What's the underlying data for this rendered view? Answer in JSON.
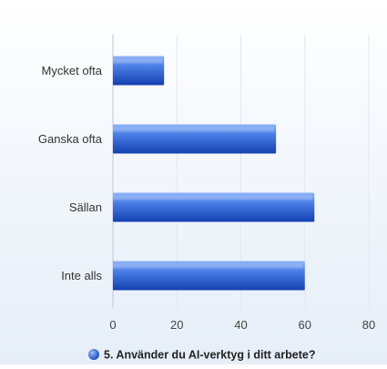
{
  "chart_data": {
    "type": "bar",
    "orientation": "horizontal",
    "categories": [
      "Mycket ofta",
      "Ganska ofta",
      "Sällan",
      "Inte alls"
    ],
    "series": [
      {
        "name": "5. Använder du AI-verktyg i ditt arbete?",
        "values": [
          16,
          51,
          63,
          60
        ]
      }
    ],
    "xlim": [
      0,
      80
    ],
    "xticks": [
      0,
      20,
      40,
      60,
      80
    ],
    "grid": true,
    "legend": "bottom-center",
    "colors": {
      "bar_dark": "#1d4fc4",
      "bar_light": "#6f9cf2",
      "grid": "#e2e8f0",
      "axis": "#bfc8d4"
    }
  }
}
